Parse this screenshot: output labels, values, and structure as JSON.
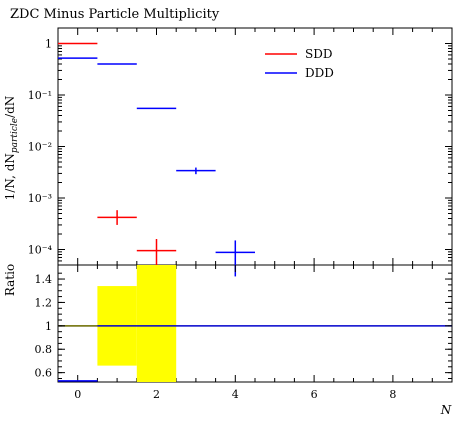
{
  "chart_data": [
    {
      "type": "line",
      "title": "ZDC Minus Particle Multiplicity",
      "ylabel": "1/N, dN_particle/dN",
      "xlabel": "",
      "yscale": "log",
      "ylim": [
        5e-05,
        2.0
      ],
      "xlim": [
        -0.5,
        9.5
      ],
      "ytick_labels": [
        "1",
        "10⁻¹",
        "10⁻²",
        "10⁻³",
        "10⁻⁴"
      ],
      "ytick_values": [
        1,
        0.1,
        0.01,
        0.001,
        0.0001
      ],
      "legend_position": "top-right",
      "series": [
        {
          "name": "SDD",
          "color": "#ff0000",
          "points": [
            {
              "x": 0,
              "xlo": -0.5,
              "xhi": 0.5,
              "y": 1.0,
              "ylo": 1.0,
              "yhi": 1.0
            },
            {
              "x": 1,
              "xlo": 0.5,
              "xhi": 1.5,
              "y": 0.00042,
              "ylo": 0.0003,
              "yhi": 0.00058
            },
            {
              "x": 2,
              "xlo": 1.5,
              "xhi": 2.5,
              "y": 9.5e-05,
              "ylo": 5e-05,
              "yhi": 0.00016
            }
          ]
        },
        {
          "name": "DDD",
          "color": "#0000ff",
          "points": [
            {
              "x": 0,
              "xlo": -0.5,
              "xhi": 0.5,
              "y": 0.52,
              "ylo": 0.52,
              "yhi": 0.52
            },
            {
              "x": 1,
              "xlo": 0.5,
              "xhi": 1.5,
              "y": 0.4,
              "ylo": 0.4,
              "yhi": 0.4
            },
            {
              "x": 2,
              "xlo": 1.5,
              "xhi": 2.5,
              "y": 0.055,
              "ylo": 0.055,
              "yhi": 0.055
            },
            {
              "x": 3,
              "xlo": 2.5,
              "xhi": 3.5,
              "y": 0.0034,
              "ylo": 0.0029,
              "yhi": 0.0039
            },
            {
              "x": 4,
              "xlo": 3.5,
              "xhi": 4.5,
              "y": 8.8e-05,
              "ylo": 3e-05,
              "yhi": 0.00015
            }
          ]
        }
      ]
    },
    {
      "type": "line",
      "title": "",
      "ylabel": "Ratio",
      "xlabel": "N",
      "ylim": [
        0.52,
        1.52
      ],
      "xlim": [
        -0.5,
        9.5
      ],
      "ytick_labels": [
        "0.6",
        "0.8",
        "1",
        "1.2",
        "1.4"
      ],
      "ytick_values": [
        0.6,
        0.8,
        1.0,
        1.2,
        1.4
      ],
      "xtick_labels": [
        "0",
        "2",
        "4",
        "6",
        "8"
      ],
      "xtick_values": [
        0,
        2,
        4,
        6,
        8
      ],
      "reference_line": {
        "y": 1.0,
        "x_start": -0.5,
        "x_end": 9.5,
        "color": "#0000cc"
      },
      "uncertainty_band": {
        "color": "#ffff00",
        "bins": [
          {
            "xlo": 0.5,
            "xhi": 1.5,
            "ylo": 0.66,
            "yhi": 1.34
          },
          {
            "xlo": 1.5,
            "xhi": 2.5,
            "ylo": 0.52,
            "yhi": 1.52
          }
        ]
      },
      "series": [
        {
          "name": "SDD",
          "color": "#888800",
          "points": [
            {
              "xlo": -0.5,
              "xhi": 0.5,
              "y": 1.0
            }
          ]
        },
        {
          "name": "DDD",
          "color": "#0000ff",
          "points": [
            {
              "xlo": -0.5,
              "xhi": 0.5,
              "y": 0.53
            }
          ]
        }
      ]
    }
  ]
}
